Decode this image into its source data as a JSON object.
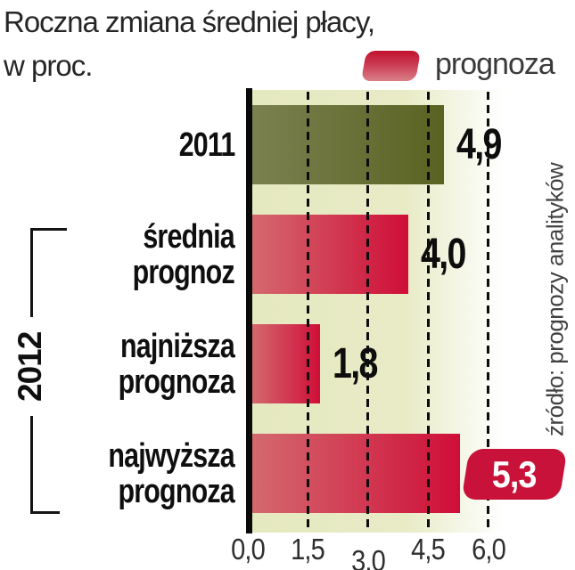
{
  "title": {
    "line1": "Roczna zmiana średniej płacy,",
    "line2": "w proc."
  },
  "legend": {
    "label": "prognoza",
    "swatch_color": "#c8123a"
  },
  "group_label": "2012",
  "source_note": "źródło: prognozy analityków",
  "chart_data": {
    "type": "bar",
    "orientation": "horizontal",
    "title": "Roczna zmiana średniej płacy, w proc.",
    "categories": [
      "2011",
      "średnia prognoz",
      "najniższa prognoza",
      "najwyższa prognoza"
    ],
    "categories_lines": [
      [
        "2011"
      ],
      [
        "średnia",
        "prognoz"
      ],
      [
        "najniższa",
        "prognoza"
      ],
      [
        "najwyższa",
        "prognoza"
      ]
    ],
    "values": [
      4.9,
      4.0,
      1.8,
      5.3
    ],
    "value_labels": [
      "4,9",
      "4,0",
      "1,8",
      "5,3"
    ],
    "is_forecast": [
      false,
      true,
      true,
      true
    ],
    "badge_rows": [
      3
    ],
    "group_2012_rows": [
      1,
      2,
      3
    ],
    "x_ticks": [
      "0,0",
      "1,5",
      "3,0",
      "4,5",
      "6,0"
    ],
    "x_tick_values": [
      0,
      1.5,
      3.0,
      4.5,
      6.0
    ],
    "xlim": [
      0,
      7.0
    ],
    "grid": "dashed-vertical",
    "legend_position": "top-right",
    "colors": {
      "actual_bar_gradient": [
        "#7a8150",
        "#5a6222"
      ],
      "forecast_bar_gradient": [
        "#d4696f",
        "#cf0e38"
      ],
      "plot_background": "#e6e9c1",
      "badge": "#c8123a",
      "gridline": "#0c0c0c",
      "text": "#0d0d0d"
    }
  }
}
